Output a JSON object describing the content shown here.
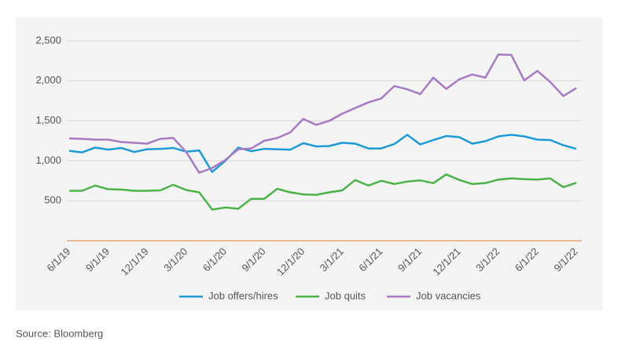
{
  "chart_data": {
    "type": "line",
    "categories": [
      "6/1/19",
      null,
      null,
      "9/1/19",
      null,
      null,
      "12/1/19",
      null,
      null,
      "3/1/20",
      null,
      null,
      "6/1/20",
      null,
      null,
      "9/1/20",
      null,
      null,
      "12/1/20",
      null,
      null,
      "3/1/21",
      null,
      null,
      "6/1/21",
      null,
      null,
      "9/1/21",
      null,
      null,
      "12/1/21",
      null,
      null,
      "3/1/22",
      null,
      null,
      "6/1/22",
      null,
      null,
      "9/1/22"
    ],
    "series": [
      {
        "name": "Job offers/hires",
        "color": "#1e9ad6",
        "values": [
          1125,
          1105,
          1165,
          1140,
          1160,
          1110,
          1145,
          1150,
          1160,
          1115,
          1130,
          860,
          1000,
          1165,
          1120,
          1150,
          1145,
          1140,
          1220,
          1180,
          1185,
          1225,
          1215,
          1155,
          1155,
          1210,
          1325,
          1205,
          1260,
          1310,
          1295,
          1215,
          1245,
          1305,
          1325,
          1305,
          1265,
          1260,
          1195,
          1150
        ]
      },
      {
        "name": "Job quits",
        "color": "#4db349",
        "values": [
          625,
          625,
          690,
          645,
          640,
          625,
          625,
          630,
          700,
          635,
          605,
          390,
          415,
          400,
          525,
          525,
          650,
          605,
          580,
          575,
          605,
          630,
          760,
          690,
          750,
          710,
          740,
          755,
          720,
          830,
          760,
          710,
          720,
          765,
          780,
          770,
          765,
          780,
          670,
          725
        ]
      },
      {
        "name": "Job vacancies",
        "color": "#a77bc2",
        "values": [
          1280,
          1275,
          1265,
          1265,
          1235,
          1225,
          1215,
          1275,
          1285,
          1110,
          850,
          910,
          1010,
          1145,
          1155,
          1250,
          1285,
          1355,
          1525,
          1450,
          1500,
          1590,
          1660,
          1730,
          1780,
          1935,
          1895,
          1835,
          2040,
          1900,
          2020,
          2080,
          2040,
          2330,
          2325,
          2005,
          2125,
          1985,
          1810,
          1910
        ]
      }
    ],
    "ylim": [
      0,
      2500
    ],
    "yticks": [
      {
        "value": 500,
        "label": "500"
      },
      {
        "value": 1000,
        "label": "1,000"
      },
      {
        "value": 1500,
        "label": "1,500"
      },
      {
        "value": 2000,
        "label": "2,000"
      },
      {
        "value": 2500,
        "label": "2,500"
      }
    ],
    "grid": true,
    "legend": "bottom",
    "source": "Source: Bloomberg"
  }
}
